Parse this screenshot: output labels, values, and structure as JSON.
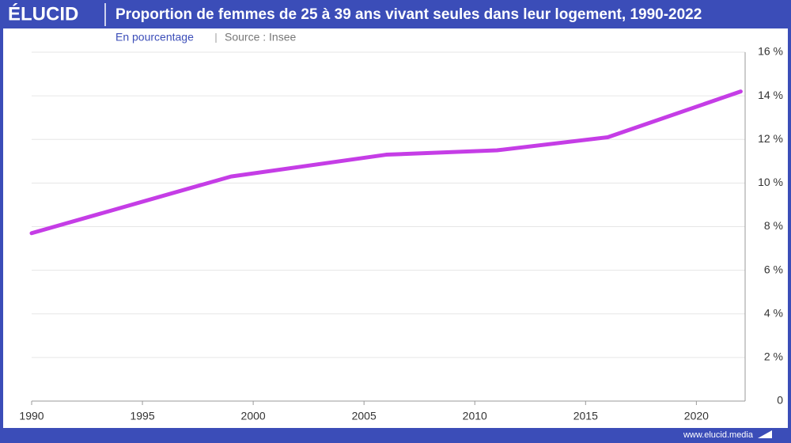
{
  "chart_data": {
    "type": "line",
    "brand": "ÉLUCID",
    "title": "Proportion de femmes de 25 à 39 ans vivant seules dans leur logement, 1990-2022",
    "subtitle": "En pourcentage",
    "source": "Source : Insee",
    "footer": "www.elucid.media",
    "x": [
      1990,
      1999,
      2006,
      2011,
      2016,
      2022
    ],
    "series": [
      {
        "name": "Femmes de 25 à 39 ans vivant seules",
        "color": "#c53de6",
        "values": [
          7.7,
          10.3,
          11.3,
          11.5,
          12.1,
          14.2
        ]
      }
    ],
    "xlim": [
      1990,
      2022.2
    ],
    "xticks": [
      1990,
      1995,
      2000,
      2005,
      2010,
      2015,
      2020
    ],
    "ylim": [
      0,
      16
    ],
    "yticks": [
      0,
      {
        "value": 2,
        "label": "2 %"
      },
      {
        "value": 4,
        "label": "4 %"
      },
      {
        "value": 6,
        "label": "6 %"
      },
      {
        "value": 8,
        "label": "8 %"
      },
      {
        "value": 10,
        "label": "10 %"
      },
      {
        "value": 12,
        "label": "12 %"
      },
      {
        "value": 14,
        "label": "14 %"
      },
      {
        "value": 16,
        "label": "16 %"
      }
    ],
    "grid": true
  }
}
